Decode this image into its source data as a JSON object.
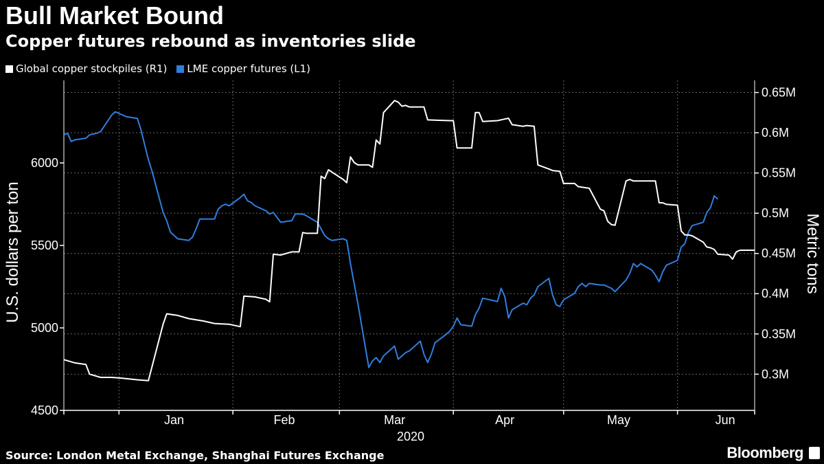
{
  "title": "Bull Market Bound",
  "subtitle": "Copper futures rebound as inventories slide",
  "source": "Source: London Metal Exchange, Shanghai Futures Exchange",
  "brand": "Bloomberg",
  "colors": {
    "background": "#000000",
    "white_series": "#ffffff",
    "blue_series": "#2f7fe0",
    "grid": "#6a6a6a"
  },
  "chart_data": {
    "type": "line",
    "xlabel": "2020",
    "x_ticks": [
      "Jan",
      "Feb",
      "Mar",
      "Apr",
      "May",
      "Jun"
    ],
    "y_left": {
      "label": "U.S. dollars per ton",
      "ticks": [
        "4500",
        "5000",
        "5500",
        "6000"
      ],
      "range": [
        4500,
        6500
      ]
    },
    "y_right": {
      "label": "Metric tons",
      "ticks": [
        "0.3M",
        "0.35M",
        "0.4M",
        "0.45M",
        "0.5M",
        "0.55M",
        "0.6M",
        "0.65M"
      ],
      "range": [
        255000,
        665000
      ]
    },
    "series": [
      {
        "name": "LME copper futures (L1)",
        "axis": "left",
        "color": "#2f7fe0",
        "x": [
          "2019-12-17",
          "2019-12-18",
          "2019-12-19",
          "2019-12-20",
          "2019-12-23",
          "2019-12-24",
          "2019-12-26",
          "2019-12-27",
          "2019-12-30",
          "2019-12-31",
          "2020-01-02",
          "2020-01-03",
          "2020-01-06",
          "2020-01-07",
          "2020-01-08",
          "2020-01-09",
          "2020-01-10",
          "2020-01-13",
          "2020-01-14",
          "2020-01-15",
          "2020-01-16",
          "2020-01-17",
          "2020-01-20",
          "2020-01-21",
          "2020-01-22",
          "2020-01-23",
          "2020-01-24",
          "2020-01-27",
          "2020-01-28",
          "2020-01-29",
          "2020-01-30",
          "2020-01-31",
          "2020-02-03",
          "2020-02-04",
          "2020-02-05",
          "2020-02-06",
          "2020-02-07",
          "2020-02-10",
          "2020-02-11",
          "2020-02-12",
          "2020-02-13",
          "2020-02-14",
          "2020-02-17",
          "2020-02-18",
          "2020-02-19",
          "2020-02-20",
          "2020-02-21",
          "2020-02-24",
          "2020-02-25",
          "2020-02-26",
          "2020-02-27",
          "2020-02-28",
          "2020-03-02",
          "2020-03-03",
          "2020-03-04",
          "2020-03-05",
          "2020-03-06",
          "2020-03-09",
          "2020-03-10",
          "2020-03-11",
          "2020-03-12",
          "2020-03-13",
          "2020-03-16",
          "2020-03-17",
          "2020-03-18",
          "2020-03-19",
          "2020-03-20",
          "2020-03-23",
          "2020-03-24",
          "2020-03-25",
          "2020-03-26",
          "2020-03-27",
          "2020-03-30",
          "2020-03-31",
          "2020-04-01",
          "2020-04-02",
          "2020-04-03",
          "2020-04-06",
          "2020-04-07",
          "2020-04-08",
          "2020-04-09",
          "2020-04-13",
          "2020-04-14",
          "2020-04-15",
          "2020-04-16",
          "2020-04-17",
          "2020-04-20",
          "2020-04-21",
          "2020-04-22",
          "2020-04-23",
          "2020-04-24",
          "2020-04-27",
          "2020-04-28",
          "2020-04-29",
          "2020-04-30",
          "2020-05-01",
          "2020-05-04",
          "2020-05-05",
          "2020-05-06",
          "2020-05-07",
          "2020-05-08",
          "2020-05-11",
          "2020-05-12",
          "2020-05-13",
          "2020-05-14",
          "2020-05-15",
          "2020-05-18",
          "2020-05-19",
          "2020-05-20",
          "2020-05-21",
          "2020-05-22",
          "2020-05-25",
          "2020-05-26",
          "2020-05-27",
          "2020-05-28",
          "2020-05-29",
          "2020-06-01",
          "2020-06-02",
          "2020-06-03",
          "2020-06-04",
          "2020-06-05",
          "2020-06-08",
          "2020-06-09",
          "2020-06-10",
          "2020-06-11",
          "2020-06-12"
        ],
        "values": [
          6170,
          6180,
          6130,
          6140,
          6150,
          6170,
          6180,
          6190,
          6290,
          6310,
          6290,
          6280,
          6270,
          6200,
          6110,
          6020,
          5950,
          5700,
          5650,
          5580,
          5560,
          5540,
          5530,
          5550,
          5600,
          5660,
          5660,
          5660,
          5720,
          5740,
          5750,
          5740,
          5790,
          5810,
          5770,
          5760,
          5740,
          5710,
          5690,
          5700,
          5670,
          5640,
          5650,
          5690,
          5690,
          5690,
          5680,
          5640,
          5600,
          5560,
          5540,
          5530,
          5540,
          5530,
          5390,
          5270,
          5150,
          4760,
          4800,
          4820,
          4790,
          4830,
          4890,
          4810,
          4830,
          4850,
          4860,
          4920,
          4840,
          4790,
          4840,
          4910,
          4960,
          4980,
          5010,
          5060,
          5020,
          5010,
          5080,
          5120,
          5180,
          5160,
          5240,
          5190,
          5060,
          5110,
          5150,
          5140,
          5180,
          5200,
          5250,
          5300,
          5200,
          5140,
          5130,
          5170,
          5210,
          5250,
          5270,
          5250,
          5270,
          5260,
          5260,
          5250,
          5240,
          5220,
          5290,
          5330,
          5390,
          5370,
          5390,
          5350,
          5320,
          5280,
          5340,
          5380,
          5410,
          5490,
          5510,
          5580,
          5620,
          5640,
          5700,
          5730,
          5800,
          5780
        ],
        "note": ""
      },
      {
        "name": "Global copper stockpiles (R1)",
        "axis": "right",
        "color": "#ffffff",
        "x": [],
        "values": []
      }
    ]
  }
}
